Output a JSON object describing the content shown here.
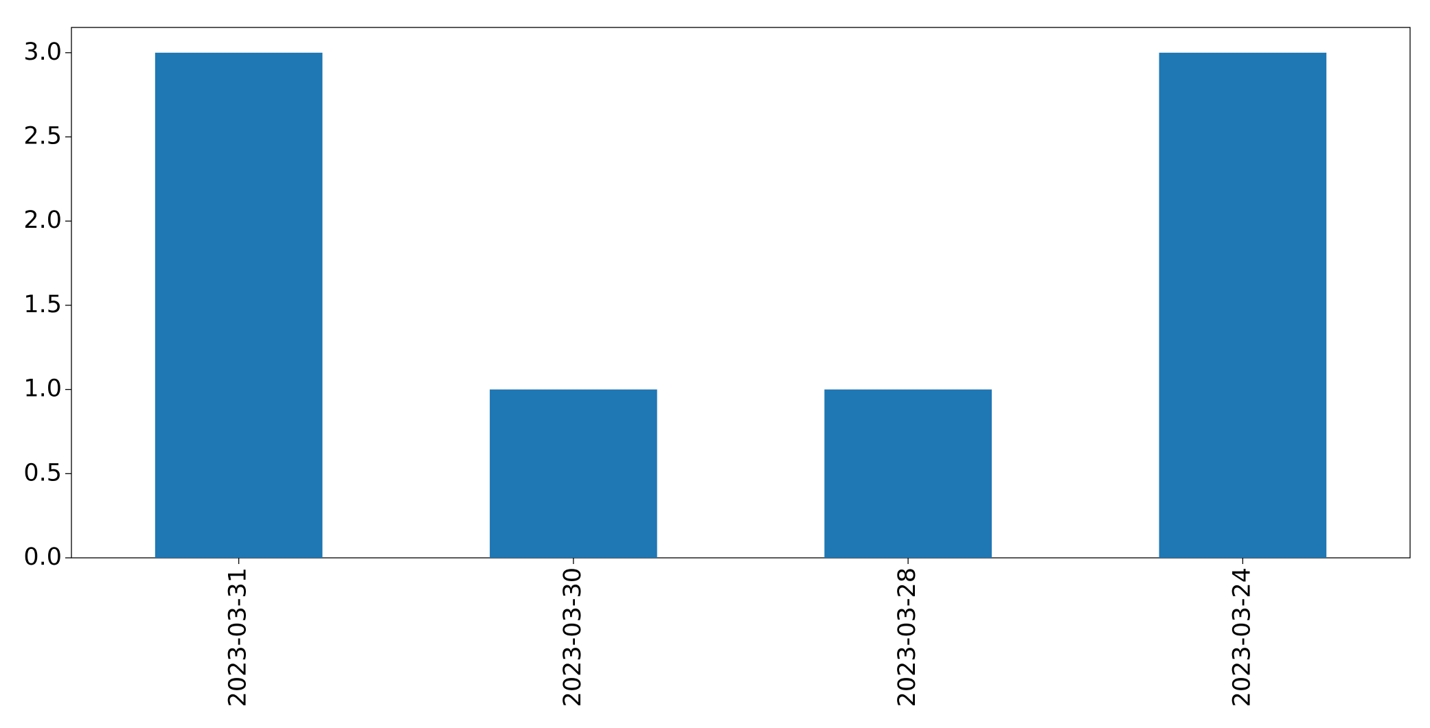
{
  "chart_data": {
    "type": "bar",
    "categories": [
      "2023-03-31",
      "2023-03-30",
      "2023-03-28",
      "2023-03-24"
    ],
    "values": [
      3,
      1,
      1,
      3
    ],
    "color": "#1f77b4",
    "ylim": [
      0,
      3.15
    ],
    "yticks": [
      {
        "value": 0,
        "label": "0.0"
      },
      0.5,
      {
        "value": 1,
        "label": "1.0"
      },
      1.5,
      {
        "value": 2,
        "label": "2.0"
      },
      2.5,
      {
        "value": 3,
        "label": "3.0"
      }
    ],
    "grid": false
  }
}
